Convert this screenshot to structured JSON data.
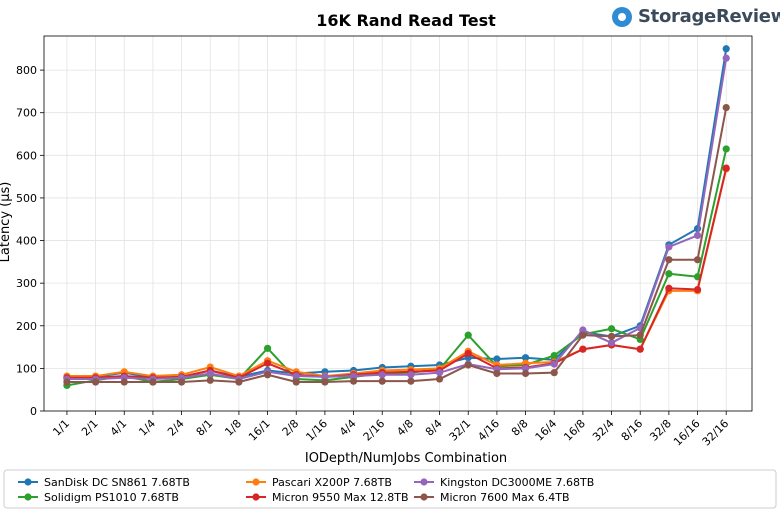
{
  "brand": {
    "name": "StorageReview",
    "logo_icon": "storage-review-logo-icon"
  },
  "chart_data": {
    "type": "line",
    "title": "16K Rand Read Test",
    "xlabel": "IODepth/NumJobs Combination",
    "ylabel": "Latency (µs)",
    "ylim": [
      0,
      880
    ],
    "yticks": [
      0,
      100,
      200,
      300,
      400,
      500,
      600,
      700,
      800
    ],
    "grid": true,
    "legend_position": "bottom",
    "categories": [
      "1/1",
      "2/1",
      "4/1",
      "1/4",
      "2/4",
      "8/1",
      "1/8",
      "16/1",
      "2/8",
      "1/16",
      "4/4",
      "2/16",
      "4/8",
      "8/4",
      "32/1",
      "4/16",
      "8/8",
      "16/4",
      "16/8",
      "32/4",
      "8/16",
      "32/8",
      "16/16",
      "32/16"
    ],
    "series": [
      {
        "name": "SanDisk DC SN861 7.68TB",
        "color": "#1f77b4",
        "values": [
          78,
          80,
          90,
          78,
          80,
          95,
          80,
          95,
          88,
          92,
          95,
          102,
          105,
          108,
          125,
          122,
          125,
          120,
          185,
          175,
          200,
          390,
          428,
          850
        ]
      },
      {
        "name": "Solidigm PS1010 7.68TB",
        "color": "#2ca02c",
        "values": [
          60,
          72,
          82,
          68,
          75,
          85,
          75,
          147,
          75,
          72,
          80,
          88,
          90,
          98,
          178,
          105,
          108,
          130,
          180,
          193,
          168,
          322,
          315,
          615
        ]
      },
      {
        "name": "Pascari X200P 7.68TB",
        "color": "#ff7f0e",
        "values": [
          82,
          82,
          92,
          82,
          85,
          103,
          82,
          118,
          92,
          82,
          88,
          95,
          97,
          100,
          140,
          108,
          112,
          115,
          145,
          155,
          145,
          282,
          282,
          568
        ]
      },
      {
        "name": "Micron 9550 Max 12.8TB",
        "color": "#d62728",
        "values": [
          78,
          78,
          82,
          78,
          80,
          95,
          78,
          112,
          85,
          80,
          85,
          90,
          92,
          95,
          135,
          100,
          102,
          112,
          145,
          155,
          145,
          288,
          285,
          570
        ]
      },
      {
        "name": "Kingston DC3000ME 7.68TB",
        "color": "#9467bd",
        "values": [
          75,
          75,
          78,
          75,
          78,
          88,
          75,
          92,
          82,
          80,
          82,
          85,
          85,
          90,
          110,
          98,
          100,
          110,
          190,
          160,
          195,
          385,
          412,
          828
        ]
      },
      {
        "name": "Micron 7600 Max 6.4TB",
        "color": "#8c564b",
        "values": [
          68,
          68,
          68,
          68,
          68,
          72,
          68,
          85,
          68,
          68,
          70,
          70,
          70,
          75,
          108,
          88,
          88,
          90,
          178,
          175,
          178,
          355,
          355,
          712
        ]
      }
    ]
  }
}
